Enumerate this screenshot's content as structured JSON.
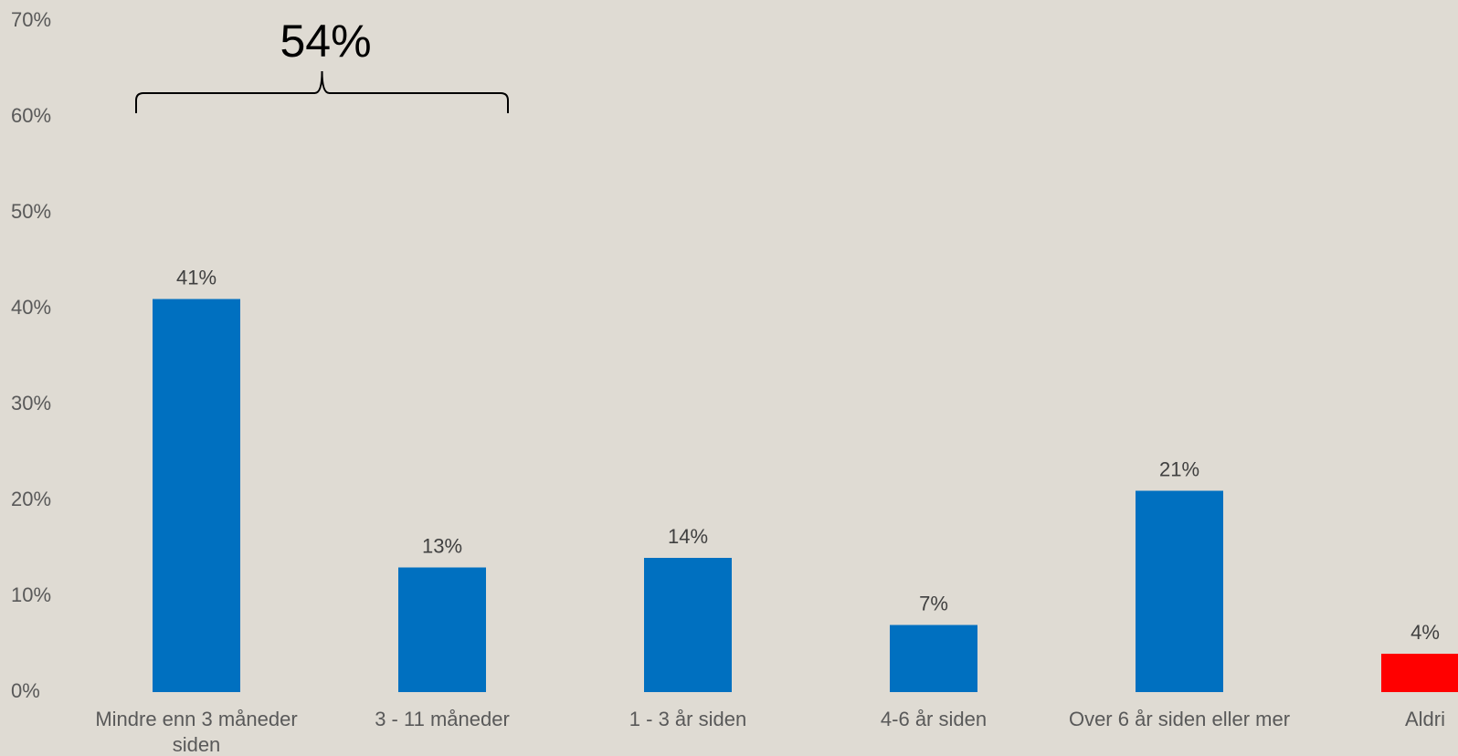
{
  "chart_data": {
    "type": "bar",
    "title": "",
    "xlabel": "",
    "ylabel": "",
    "categories": [
      [
        "Mindre enn 3 måneder",
        "siden"
      ],
      [
        "3 - 11 måneder"
      ],
      [
        "1 - 3 år siden"
      ],
      [
        "4-6 år siden"
      ],
      [
        "Over 6 år siden eller mer"
      ],
      [
        "Aldri"
      ]
    ],
    "values": [
      41,
      13,
      14,
      7,
      21,
      4
    ],
    "data_labels": [
      "41%",
      "13%",
      "14%",
      "7%",
      "21%",
      "4%"
    ],
    "bar_colors": [
      "#0070c0",
      "#0070c0",
      "#0070c0",
      "#0070c0",
      "#0070c0",
      "#ff0000"
    ],
    "ylim": [
      0,
      70
    ],
    "yticks": [
      0,
      10,
      20,
      30,
      40,
      50,
      60,
      70
    ],
    "ytick_labels": [
      "0%",
      "10%",
      "20%",
      "30%",
      "40%",
      "50%",
      "60%",
      "70%"
    ],
    "grid": false,
    "legend": "none",
    "annotation": {
      "type": "bracket",
      "spans_categories": [
        0,
        1
      ],
      "label": "54%"
    }
  },
  "colors": {
    "background": "#dfdbd3",
    "bar": "#0070c0",
    "highlight": "#ff0000"
  }
}
